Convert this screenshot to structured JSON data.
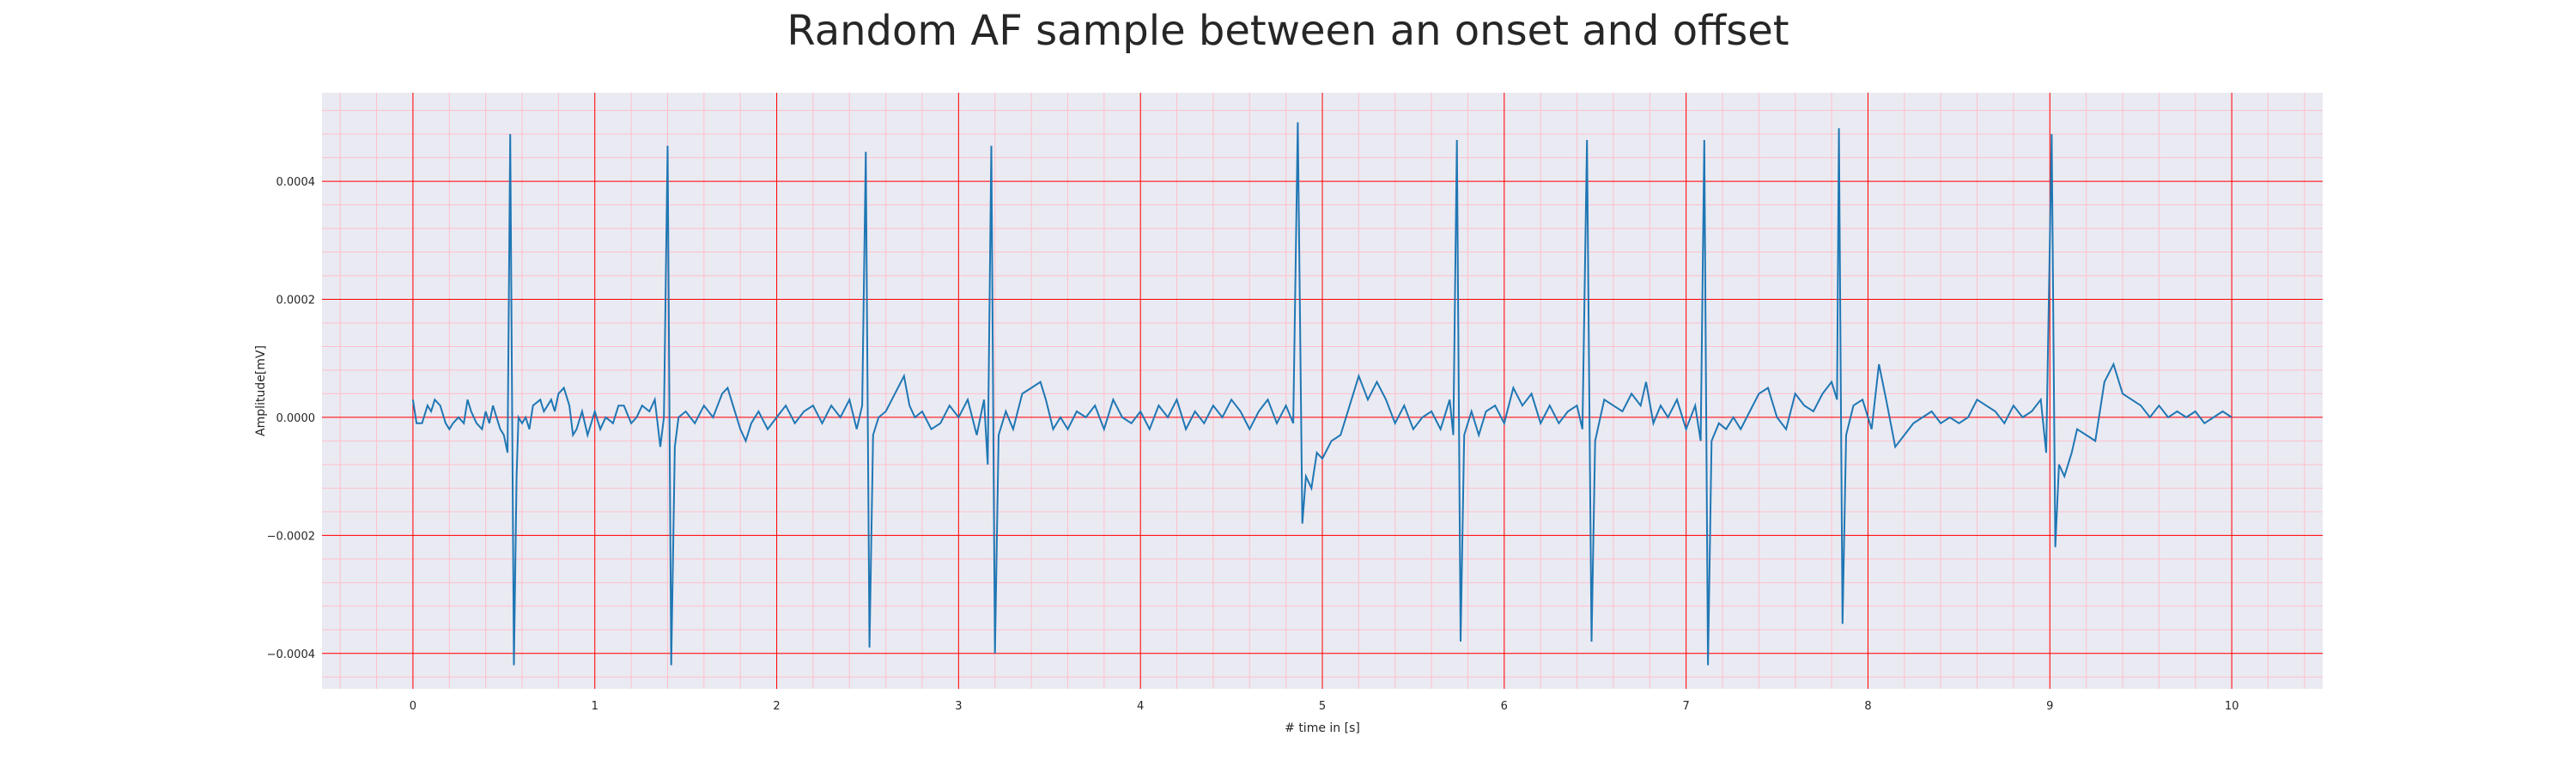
{
  "chart_data": {
    "type": "line",
    "title": "Random AF sample between an onset and offset",
    "xlabel": "# time in [s]",
    "ylabel": "Amplitude[mV]",
    "xlim": [
      -0.5,
      10.5
    ],
    "ylim": [
      -0.00046,
      0.00055
    ],
    "xticks": [
      0,
      1,
      2,
      3,
      4,
      5,
      6,
      7,
      8,
      9,
      10
    ],
    "xtick_labels": [
      "0",
      "1",
      "2",
      "3",
      "4",
      "5",
      "6",
      "7",
      "8",
      "9",
      "10"
    ],
    "yticks": [
      -0.0004,
      -0.0002,
      0.0,
      0.0002,
      0.0004
    ],
    "ytick_labels": [
      "−0.0004",
      "−0.0002",
      "0.0000",
      "0.0002",
      "0.0004"
    ],
    "grid": true,
    "minor_grid": true,
    "legend": "none",
    "colors": {
      "line": "#1f77b4",
      "background": "#eaeaf2",
      "major_grid": "#ff0000",
      "minor_grid": "#ffc0cb"
    },
    "series": [
      {
        "values": [
          [
            0.0,
            3e-05
          ],
          [
            0.02,
            -1e-05
          ],
          [
            0.05,
            -1e-05
          ],
          [
            0.08,
            2e-05
          ],
          [
            0.1,
            1e-05
          ],
          [
            0.12,
            3e-05
          ],
          [
            0.15,
            2e-05
          ],
          [
            0.18,
            -1e-05
          ],
          [
            0.2,
            -2e-05
          ],
          [
            0.22,
            -1e-05
          ],
          [
            0.25,
            0.0
          ],
          [
            0.28,
            -1e-05
          ],
          [
            0.3,
            3e-05
          ],
          [
            0.32,
            1e-05
          ],
          [
            0.35,
            -1e-05
          ],
          [
            0.38,
            -2e-05
          ],
          [
            0.4,
            1e-05
          ],
          [
            0.42,
            -1e-05
          ],
          [
            0.44,
            2e-05
          ],
          [
            0.46,
            0.0
          ],
          [
            0.48,
            -2e-05
          ],
          [
            0.5,
            -3e-05
          ],
          [
            0.52,
            -6e-05
          ],
          [
            0.535,
            0.00048
          ],
          [
            0.555,
            -0.00042
          ],
          [
            0.57,
            -0.0001
          ],
          [
            0.58,
            0.0
          ],
          [
            0.6,
            -1e-05
          ],
          [
            0.62,
            0.0
          ],
          [
            0.64,
            -2e-05
          ],
          [
            0.66,
            2e-05
          ],
          [
            0.7,
            3e-05
          ],
          [
            0.72,
            1e-05
          ],
          [
            0.74,
            2e-05
          ],
          [
            0.76,
            3e-05
          ],
          [
            0.78,
            1e-05
          ],
          [
            0.8,
            4e-05
          ],
          [
            0.83,
            5e-05
          ],
          [
            0.86,
            2e-05
          ],
          [
            0.88,
            -3e-05
          ],
          [
            0.9,
            -2e-05
          ],
          [
            0.93,
            1e-05
          ],
          [
            0.96,
            -3e-05
          ],
          [
            1.0,
            1e-05
          ],
          [
            1.03,
            -2e-05
          ],
          [
            1.06,
            0.0
          ],
          [
            1.1,
            -1e-05
          ],
          [
            1.13,
            2e-05
          ],
          [
            1.16,
            2e-05
          ],
          [
            1.2,
            -1e-05
          ],
          [
            1.23,
            0.0
          ],
          [
            1.26,
            2e-05
          ],
          [
            1.3,
            1e-05
          ],
          [
            1.33,
            3e-05
          ],
          [
            1.36,
            -5e-05
          ],
          [
            1.38,
            0.0
          ],
          [
            1.4,
            0.00046
          ],
          [
            1.42,
            -0.00042
          ],
          [
            1.44,
            -5e-05
          ],
          [
            1.46,
            0.0
          ],
          [
            1.5,
            1e-05
          ],
          [
            1.55,
            -1e-05
          ],
          [
            1.6,
            2e-05
          ],
          [
            1.65,
            0.0
          ],
          [
            1.7,
            4e-05
          ],
          [
            1.73,
            5e-05
          ],
          [
            1.76,
            2e-05
          ],
          [
            1.8,
            -2e-05
          ],
          [
            1.83,
            -4e-05
          ],
          [
            1.86,
            -1e-05
          ],
          [
            1.9,
            1e-05
          ],
          [
            1.95,
            -2e-05
          ],
          [
            2.0,
            0.0
          ],
          [
            2.05,
            2e-05
          ],
          [
            2.1,
            -1e-05
          ],
          [
            2.15,
            1e-05
          ],
          [
            2.2,
            2e-05
          ],
          [
            2.25,
            -1e-05
          ],
          [
            2.3,
            2e-05
          ],
          [
            2.35,
            0.0
          ],
          [
            2.4,
            3e-05
          ],
          [
            2.44,
            -2e-05
          ],
          [
            2.47,
            2e-05
          ],
          [
            2.49,
            0.00045
          ],
          [
            2.51,
            -0.00039
          ],
          [
            2.53,
            -3e-05
          ],
          [
            2.56,
            0.0
          ],
          [
            2.6,
            1e-05
          ],
          [
            2.65,
            4e-05
          ],
          [
            2.7,
            7e-05
          ],
          [
            2.73,
            2e-05
          ],
          [
            2.76,
            0.0
          ],
          [
            2.8,
            1e-05
          ],
          [
            2.85,
            -2e-05
          ],
          [
            2.9,
            -1e-05
          ],
          [
            2.95,
            2e-05
          ],
          [
            3.0,
            0.0
          ],
          [
            3.05,
            3e-05
          ],
          [
            3.1,
            -3e-05
          ],
          [
            3.14,
            3e-05
          ],
          [
            3.16,
            -8e-05
          ],
          [
            3.18,
            0.00046
          ],
          [
            3.2,
            -0.0004
          ],
          [
            3.22,
            -3e-05
          ],
          [
            3.26,
            1e-05
          ],
          [
            3.3,
            -2e-05
          ],
          [
            3.35,
            4e-05
          ],
          [
            3.4,
            5e-05
          ],
          [
            3.45,
            6e-05
          ],
          [
            3.48,
            3e-05
          ],
          [
            3.52,
            -2e-05
          ],
          [
            3.56,
            0.0
          ],
          [
            3.6,
            -2e-05
          ],
          [
            3.65,
            1e-05
          ],
          [
            3.7,
            0.0
          ],
          [
            3.75,
            2e-05
          ],
          [
            3.8,
            -2e-05
          ],
          [
            3.85,
            3e-05
          ],
          [
            3.9,
            0.0
          ],
          [
            3.95,
            -1e-05
          ],
          [
            4.0,
            1e-05
          ],
          [
            4.05,
            -2e-05
          ],
          [
            4.1,
            2e-05
          ],
          [
            4.15,
            0.0
          ],
          [
            4.2,
            3e-05
          ],
          [
            4.25,
            -2e-05
          ],
          [
            4.3,
            1e-05
          ],
          [
            4.35,
            -1e-05
          ],
          [
            4.4,
            2e-05
          ],
          [
            4.45,
            0.0
          ],
          [
            4.5,
            3e-05
          ],
          [
            4.55,
            1e-05
          ],
          [
            4.6,
            -2e-05
          ],
          [
            4.65,
            1e-05
          ],
          [
            4.7,
            3e-05
          ],
          [
            4.75,
            -1e-05
          ],
          [
            4.8,
            2e-05
          ],
          [
            4.84,
            -1e-05
          ],
          [
            4.865,
            0.0005
          ],
          [
            4.89,
            -0.00018
          ],
          [
            4.91,
            -0.0001
          ],
          [
            4.94,
            -0.00012
          ],
          [
            4.97,
            -6e-05
          ],
          [
            5.0,
            -7e-05
          ],
          [
            5.05,
            -4e-05
          ],
          [
            5.1,
            -3e-05
          ],
          [
            5.15,
            2e-05
          ],
          [
            5.2,
            7e-05
          ],
          [
            5.25,
            3e-05
          ],
          [
            5.3,
            6e-05
          ],
          [
            5.35,
            3e-05
          ],
          [
            5.4,
            -1e-05
          ],
          [
            5.45,
            2e-05
          ],
          [
            5.5,
            -2e-05
          ],
          [
            5.55,
            0.0
          ],
          [
            5.6,
            1e-05
          ],
          [
            5.65,
            -2e-05
          ],
          [
            5.7,
            3e-05
          ],
          [
            5.72,
            -3e-05
          ],
          [
            5.74,
            0.00047
          ],
          [
            5.76,
            -0.00038
          ],
          [
            5.78,
            -3e-05
          ],
          [
            5.82,
            1e-05
          ],
          [
            5.86,
            -3e-05
          ],
          [
            5.9,
            1e-05
          ],
          [
            5.95,
            2e-05
          ],
          [
            6.0,
            -1e-05
          ],
          [
            6.05,
            5e-05
          ],
          [
            6.1,
            2e-05
          ],
          [
            6.15,
            4e-05
          ],
          [
            6.2,
            -1e-05
          ],
          [
            6.25,
            2e-05
          ],
          [
            6.3,
            -1e-05
          ],
          [
            6.35,
            1e-05
          ],
          [
            6.4,
            2e-05
          ],
          [
            6.43,
            -2e-05
          ],
          [
            6.455,
            0.00047
          ],
          [
            6.48,
            -0.00038
          ],
          [
            6.5,
            -4e-05
          ],
          [
            6.55,
            3e-05
          ],
          [
            6.6,
            2e-05
          ],
          [
            6.65,
            1e-05
          ],
          [
            6.7,
            4e-05
          ],
          [
            6.75,
            2e-05
          ],
          [
            6.78,
            6e-05
          ],
          [
            6.82,
            -1e-05
          ],
          [
            6.86,
            2e-05
          ],
          [
            6.9,
            0.0
          ],
          [
            6.95,
            3e-05
          ],
          [
            7.0,
            -2e-05
          ],
          [
            7.05,
            2e-05
          ],
          [
            7.08,
            -4e-05
          ],
          [
            7.1,
            0.00047
          ],
          [
            7.12,
            -0.00042
          ],
          [
            7.14,
            -4e-05
          ],
          [
            7.18,
            -1e-05
          ],
          [
            7.22,
            -2e-05
          ],
          [
            7.26,
            0.0
          ],
          [
            7.3,
            -2e-05
          ],
          [
            7.35,
            1e-05
          ],
          [
            7.4,
            4e-05
          ],
          [
            7.45,
            5e-05
          ],
          [
            7.5,
            0.0
          ],
          [
            7.55,
            -2e-05
          ],
          [
            7.6,
            4e-05
          ],
          [
            7.65,
            2e-05
          ],
          [
            7.7,
            1e-05
          ],
          [
            7.75,
            4e-05
          ],
          [
            7.8,
            6e-05
          ],
          [
            7.83,
            3e-05
          ],
          [
            7.84,
            0.00049
          ],
          [
            7.86,
            -0.00035
          ],
          [
            7.88,
            -3e-05
          ],
          [
            7.92,
            2e-05
          ],
          [
            7.97,
            3e-05
          ],
          [
            8.02,
            -2e-05
          ],
          [
            8.06,
            9e-05
          ],
          [
            8.1,
            3e-05
          ],
          [
            8.15,
            -5e-05
          ],
          [
            8.2,
            -3e-05
          ],
          [
            8.25,
            -1e-05
          ],
          [
            8.3,
            0.0
          ],
          [
            8.35,
            1e-05
          ],
          [
            8.4,
            -1e-05
          ],
          [
            8.45,
            0.0
          ],
          [
            8.5,
            -1e-05
          ],
          [
            8.55,
            0.0
          ],
          [
            8.6,
            3e-05
          ],
          [
            8.65,
            2e-05
          ],
          [
            8.7,
            1e-05
          ],
          [
            8.75,
            -1e-05
          ],
          [
            8.8,
            2e-05
          ],
          [
            8.85,
            0.0
          ],
          [
            8.9,
            1e-05
          ],
          [
            8.95,
            3e-05
          ],
          [
            8.98,
            -6e-05
          ],
          [
            9.01,
            0.00048
          ],
          [
            9.03,
            -0.00022
          ],
          [
            9.05,
            -8e-05
          ],
          [
            9.08,
            -0.0001
          ],
          [
            9.12,
            -6e-05
          ],
          [
            9.15,
            -2e-05
          ],
          [
            9.2,
            -3e-05
          ],
          [
            9.25,
            -4e-05
          ],
          [
            9.3,
            6e-05
          ],
          [
            9.35,
            9e-05
          ],
          [
            9.4,
            4e-05
          ],
          [
            9.45,
            3e-05
          ],
          [
            9.5,
            2e-05
          ],
          [
            9.55,
            0.0
          ],
          [
            9.6,
            2e-05
          ],
          [
            9.65,
            0.0
          ],
          [
            9.7,
            1e-05
          ],
          [
            9.75,
            0.0
          ],
          [
            9.8,
            1e-05
          ],
          [
            9.85,
            -1e-05
          ],
          [
            9.9,
            0.0
          ],
          [
            9.95,
            1e-05
          ],
          [
            10.0,
            0.0
          ]
        ]
      }
    ]
  }
}
